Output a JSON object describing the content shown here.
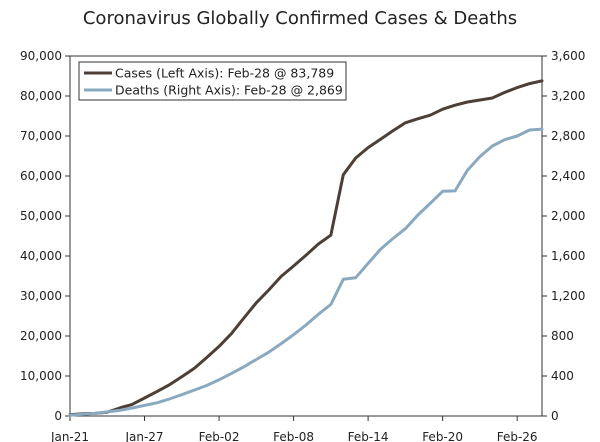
{
  "chart_data": {
    "type": "line",
    "title": "Coronavirus Globally Confirmed Cases & Deaths",
    "xlabel": "",
    "ylabel_left": "",
    "ylabel_right": "",
    "x_tick_labels": [
      "Jan-21",
      "Jan-27",
      "Feb-02",
      "Feb-08",
      "Feb-14",
      "Feb-20",
      "Feb-26"
    ],
    "left_axis": {
      "ylim": [
        0,
        90000
      ],
      "ticks": [
        0,
        10000,
        20000,
        30000,
        40000,
        50000,
        60000,
        70000,
        80000,
        90000
      ],
      "tick_labels": [
        "0",
        "10,000",
        "20,000",
        "30,000",
        "40,000",
        "50,000",
        "60,000",
        "70,000",
        "80,000",
        "90,000"
      ]
    },
    "right_axis": {
      "ylim": [
        0,
        3600
      ],
      "ticks": [
        0,
        400,
        800,
        1200,
        1600,
        2000,
        2400,
        2800,
        3200,
        3600
      ],
      "tick_labels": [
        "0",
        "400",
        "800",
        "1,200",
        "1,600",
        "2,000",
        "2,400",
        "2,800",
        "3,200",
        "3,600"
      ]
    },
    "x": [
      "Jan-21",
      "Jan-22",
      "Jan-23",
      "Jan-24",
      "Jan-25",
      "Jan-26",
      "Jan-27",
      "Jan-28",
      "Jan-29",
      "Jan-30",
      "Jan-31",
      "Feb-01",
      "Feb-02",
      "Feb-03",
      "Feb-04",
      "Feb-05",
      "Feb-06",
      "Feb-07",
      "Feb-08",
      "Feb-09",
      "Feb-10",
      "Feb-11",
      "Feb-12",
      "Feb-13",
      "Feb-14",
      "Feb-15",
      "Feb-16",
      "Feb-17",
      "Feb-18",
      "Feb-19",
      "Feb-20",
      "Feb-21",
      "Feb-22",
      "Feb-23",
      "Feb-24",
      "Feb-25",
      "Feb-26",
      "Feb-27",
      "Feb-28"
    ],
    "series": [
      {
        "name": "Cases (Left Axis): Feb-28 @ 83,789",
        "axis": "left",
        "color": "#4d3f37",
        "values": [
          300,
          550,
          650,
          950,
          2000,
          2900,
          4500,
          6100,
          7800,
          9800,
          11900,
          14600,
          17400,
          20600,
          24500,
          28300,
          31500,
          34900,
          37500,
          40200,
          43000,
          45200,
          60300,
          64500,
          67100,
          69200,
          71300,
          73300,
          74300,
          75200,
          76700,
          77700,
          78500,
          79000,
          79500,
          80900,
          82100,
          83100,
          83789
        ]
      },
      {
        "name": "Deaths (Right Axis): Feb-28 @ 2,869",
        "axis": "right",
        "color": "#8aa9bf",
        "values": [
          8,
          17,
          26,
          41,
          56,
          80,
          106,
          132,
          170,
          213,
          259,
          305,
          362,
          426,
          492,
          565,
          638,
          724,
          813,
          910,
          1018,
          1115,
          1367,
          1383,
          1526,
          1668,
          1775,
          1873,
          2009,
          2126,
          2247,
          2251,
          2458,
          2594,
          2700,
          2763,
          2800,
          2860,
          2869
        ]
      }
    ],
    "legend_position": "top-left",
    "grid": false
  }
}
